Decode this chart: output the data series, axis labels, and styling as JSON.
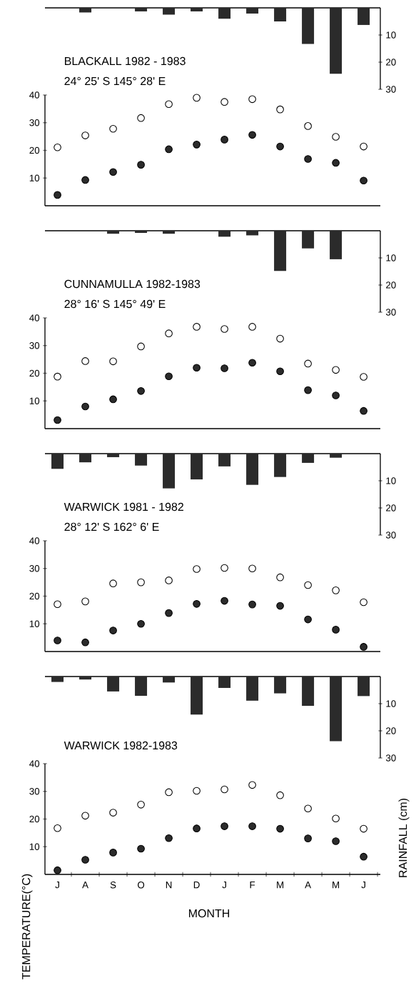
{
  "chart_data": [
    {
      "type": "bar",
      "categories": [
        null,
        null,
        null,
        null,
        null,
        null,
        null,
        null,
        null,
        null,
        null,
        null
      ],
      "ylim": [
        30,
        0
      ],
      "yticks": [
        10,
        20,
        30
      ],
      "color": "#2b2b2b",
      "values": [
        0,
        1.7,
        0,
        1.3,
        2.5,
        1.3,
        4,
        2.1,
        5,
        13.3,
        24.3,
        6.3
      ]
    },
    {
      "type": "scatter",
      "title": "BLACKALL 1982 - 1983",
      "subtitle": "24° 25' S   145° 28' E",
      "marker": "circle",
      "categories": [
        null,
        null,
        null,
        null,
        null,
        null,
        null,
        null,
        null,
        null,
        null,
        null
      ],
      "ylim": [
        0,
        40
      ],
      "yticks": [
        10,
        20,
        30,
        40
      ],
      "series": [
        {
          "color": "#ffffff",
          "values": [
            21.1,
            25.4,
            27.8,
            31.7,
            36.7,
            39,
            37.5,
            38.5,
            34.8,
            28.8,
            24.9,
            21.4
          ]
        },
        {
          "color": "#2b2b2b",
          "values": [
            3.9,
            9.3,
            12.2,
            14.8,
            20.4,
            22.1,
            23.9,
            25.6,
            21.4,
            16.9,
            15.5,
            9.1
          ]
        }
      ]
    },
    {
      "type": "bar",
      "categories": [
        null,
        null,
        null,
        null,
        null,
        null,
        null,
        null,
        null,
        null,
        null,
        null
      ],
      "ylim": [
        30,
        0
      ],
      "yticks": [
        10,
        20,
        30
      ],
      "color": "#2b2b2b",
      "values": [
        0,
        0,
        1.1,
        0.8,
        1.1,
        0,
        2.2,
        1.7,
        14.8,
        6.5,
        10.5,
        0
      ]
    },
    {
      "type": "scatter",
      "title": "CUNNAMULLA 1982-1983",
      "subtitle": "28° 16' S   145° 49' E",
      "marker": "circle",
      "categories": [
        null,
        null,
        null,
        null,
        null,
        null,
        null,
        null,
        null,
        null,
        null,
        null
      ],
      "ylim": [
        0,
        40
      ],
      "yticks": [
        10,
        20,
        30,
        40
      ],
      "series": [
        {
          "color": "#ffffff",
          "values": [
            18.8,
            24.4,
            24.3,
            29.7,
            34.4,
            36.8,
            36,
            36.8,
            32.5,
            23.5,
            21.2,
            18.7
          ]
        },
        {
          "color": "#2b2b2b",
          "values": [
            3.1,
            8,
            10.6,
            13.6,
            18.9,
            22,
            21.8,
            23.8,
            20.7,
            13.9,
            12,
            6.4
          ]
        }
      ]
    },
    {
      "type": "bar",
      "categories": [
        null,
        null,
        null,
        null,
        null,
        null,
        null,
        null,
        null,
        null,
        null,
        null
      ],
      "ylim": [
        30,
        0
      ],
      "yticks": [
        10,
        20,
        30
      ],
      "color": "#2b2b2b",
      "values": [
        5.6,
        3.2,
        1.3,
        4.4,
        12.8,
        9.5,
        4.7,
        11.5,
        8.6,
        3.4,
        1.5,
        0
      ]
    },
    {
      "type": "scatter",
      "title": "WARWICK 1981 - 1982",
      "subtitle": "28° 12' S    162° 6' E",
      "marker": "circle",
      "categories": [
        null,
        null,
        null,
        null,
        null,
        null,
        null,
        null,
        null,
        null,
        null,
        null
      ],
      "ylim": [
        0,
        40
      ],
      "yticks": [
        10,
        20,
        30,
        40
      ],
      "series": [
        {
          "color": "#ffffff",
          "values": [
            17.1,
            18.1,
            24.6,
            25,
            25.7,
            29.8,
            30.2,
            30,
            26.8,
            24,
            22.1,
            17.8
          ]
        },
        {
          "color": "#2b2b2b",
          "values": [
            4,
            3.3,
            7.6,
            10,
            13.9,
            17.2,
            18.3,
            17,
            16.5,
            11.6,
            7.9,
            1.7
          ]
        }
      ]
    },
    {
      "type": "bar",
      "ylabel": "RAINFALL (cm)",
      "categories": [
        null,
        null,
        null,
        null,
        null,
        null,
        null,
        null,
        null,
        null,
        null,
        null
      ],
      "ylim": [
        30,
        0
      ],
      "yticks": [
        10,
        20,
        30
      ],
      "color": "#2b2b2b",
      "values": [
        2,
        1.1,
        5.5,
        7.1,
        2.2,
        14,
        4.2,
        8.9,
        6.2,
        10.8,
        23.8,
        7.2
      ]
    },
    {
      "type": "scatter",
      "title": "WARWICK 1982-1983",
      "xlabel": "MONTH",
      "ylabel": "TEMPERATURE(°C)",
      "marker": "circle",
      "categories": [
        "J",
        "A",
        "S",
        "O",
        "N",
        "D",
        "J",
        "F",
        "M",
        "A",
        "M",
        "J"
      ],
      "ylim": [
        0,
        40
      ],
      "yticks": [
        10,
        20,
        30,
        40
      ],
      "series": [
        {
          "color": "#ffffff",
          "values": [
            16.7,
            21.2,
            22.3,
            25.2,
            29.7,
            30.2,
            30.7,
            32.3,
            28.6,
            23.8,
            20.2,
            16.5
          ]
        },
        {
          "color": "#2b2b2b",
          "values": [
            1.5,
            5.3,
            7.9,
            9.3,
            13.1,
            16.6,
            17.4,
            17.4,
            16.5,
            13,
            12,
            6.4
          ]
        }
      ]
    }
  ]
}
